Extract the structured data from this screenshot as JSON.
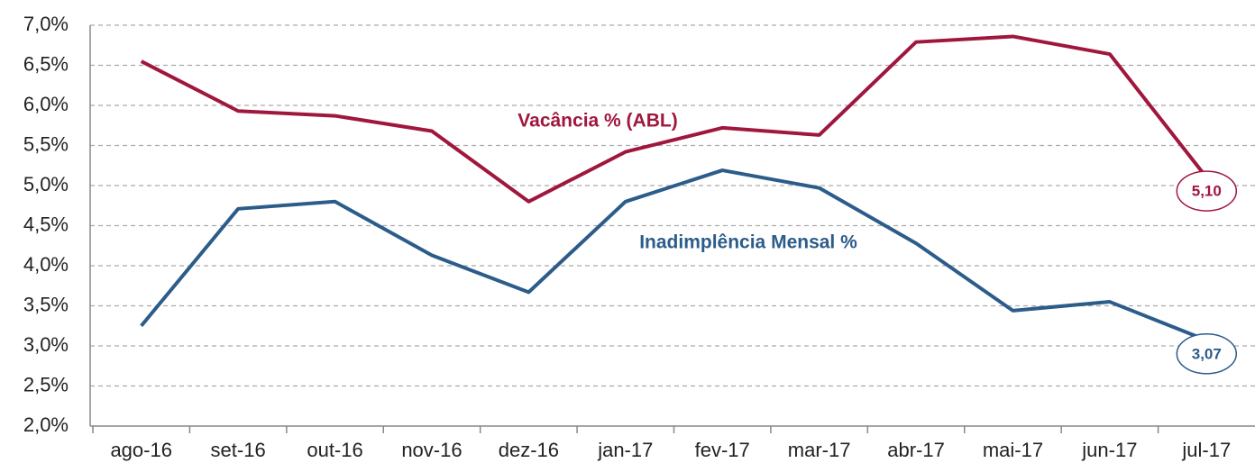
{
  "chart_data": {
    "type": "line",
    "categories": [
      "ago-16",
      "set-16",
      "out-16",
      "nov-16",
      "dez-16",
      "jan-17",
      "fev-17",
      "mar-17",
      "abr-17",
      "mai-17",
      "jun-17",
      "jul-17"
    ],
    "series": [
      {
        "name": "Vacância % (ABL)",
        "color": "#a0173d",
        "values": [
          6.55,
          5.93,
          5.87,
          5.68,
          4.8,
          5.42,
          5.72,
          5.63,
          6.79,
          6.86,
          6.64,
          5.1
        ],
        "value_labels": [
          null,
          null,
          null,
          null,
          null,
          null,
          null,
          null,
          null,
          null,
          null,
          "5,10"
        ]
      },
      {
        "name": "Inadimplência Mensal %",
        "color": "#2c5c8a",
        "values": [
          3.25,
          4.71,
          4.8,
          4.13,
          3.67,
          4.8,
          5.19,
          4.97,
          4.28,
          3.44,
          3.55,
          3.07
        ],
        "value_labels": [
          null,
          null,
          null,
          null,
          null,
          null,
          null,
          null,
          null,
          null,
          null,
          "3,07"
        ]
      }
    ],
    "ylim": [
      2.0,
      7.0
    ],
    "yticks": [
      {
        "value": 2.0,
        "label": "2,0%"
      },
      {
        "value": 2.5,
        "label": "2,5%"
      },
      {
        "value": 3.0,
        "label": "3,0%"
      },
      {
        "value": 3.5,
        "label": "3,5%"
      },
      {
        "value": 4.0,
        "label": "4,0%"
      },
      {
        "value": 4.5,
        "label": "4,5%"
      },
      {
        "value": 5.0,
        "label": "5,0%"
      },
      {
        "value": 5.5,
        "label": "5,5%"
      },
      {
        "value": 6.0,
        "label": "6,0%"
      },
      {
        "value": 6.5,
        "label": "6,5%"
      },
      {
        "value": 7.0,
        "label": "7,0%"
      }
    ],
    "grid": true
  }
}
